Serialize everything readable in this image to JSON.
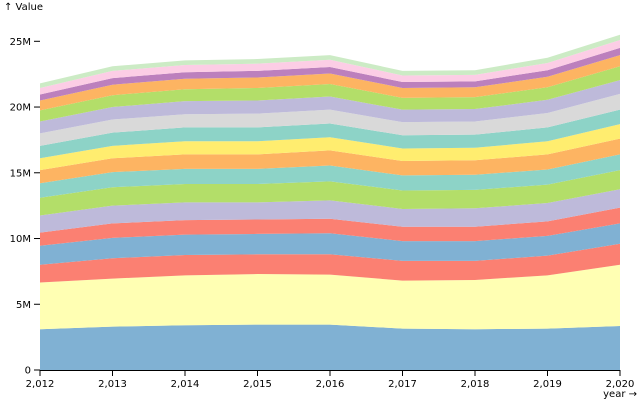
{
  "chart_data": {
    "type": "area",
    "stacked": true,
    "ylabel": "↑ Value",
    "xlabel": "year →",
    "x": [
      2012,
      2013,
      2014,
      2015,
      2016,
      2017,
      2018,
      2019,
      2020
    ],
    "x_tick_labels": [
      "2,012",
      "2,013",
      "2,014",
      "2,015",
      "2,016",
      "2,017",
      "2,018",
      "2,019",
      "2,020"
    ],
    "y_ticks": [
      0,
      5000000,
      10000000,
      15000000,
      20000000,
      25000000
    ],
    "y_tick_labels": [
      "0",
      "5M",
      "10M",
      "15M",
      "20M",
      "25M"
    ],
    "ylim": [
      0,
      27000000
    ],
    "grid": false,
    "series": [
      {
        "color": "#80b1d3",
        "values": [
          3100000,
          3300000,
          3400000,
          3450000,
          3450000,
          3150000,
          3100000,
          3150000,
          3350000
        ]
      },
      {
        "color": "#ffffb3",
        "values": [
          3550000,
          3650000,
          3800000,
          3850000,
          3800000,
          3650000,
          3750000,
          4050000,
          4650000
        ]
      },
      {
        "color": "#fb8072",
        "values": [
          1350000,
          1550000,
          1550000,
          1500000,
          1550000,
          1500000,
          1450000,
          1500000,
          1600000
        ]
      },
      {
        "color": "#80b1d3",
        "values": [
          1450000,
          1550000,
          1550000,
          1550000,
          1600000,
          1500000,
          1500000,
          1500000,
          1550000
        ]
      },
      {
        "color": "#fb8072",
        "values": [
          1000000,
          1100000,
          1100000,
          1100000,
          1100000,
          1100000,
          1100000,
          1100000,
          1200000
        ]
      },
      {
        "color": "#bebada",
        "values": [
          1300000,
          1350000,
          1350000,
          1300000,
          1400000,
          1350000,
          1400000,
          1400000,
          1400000
        ]
      },
      {
        "color": "#b3de69",
        "values": [
          1350000,
          1400000,
          1400000,
          1400000,
          1450000,
          1400000,
          1400000,
          1400000,
          1450000
        ]
      },
      {
        "color": "#8dd3c7",
        "values": [
          1100000,
          1150000,
          1150000,
          1150000,
          1200000,
          1150000,
          1150000,
          1150000,
          1200000
        ]
      },
      {
        "color": "#fdb462",
        "values": [
          1000000,
          1050000,
          1100000,
          1100000,
          1150000,
          1100000,
          1100000,
          1150000,
          1200000
        ]
      },
      {
        "color": "#ffed6f",
        "values": [
          900000,
          950000,
          1000000,
          1000000,
          1000000,
          950000,
          950000,
          1000000,
          1100000
        ]
      },
      {
        "color": "#8dd3c7",
        "values": [
          950000,
          1000000,
          1050000,
          1050000,
          1050000,
          1000000,
          1000000,
          1050000,
          1100000
        ]
      },
      {
        "color": "#d9d9d9",
        "values": [
          950000,
          1000000,
          1000000,
          1050000,
          1050000,
          1000000,
          1000000,
          1100000,
          1200000
        ]
      },
      {
        "color": "#bebada",
        "values": [
          900000,
          950000,
          1000000,
          1000000,
          1000000,
          950000,
          950000,
          1000000,
          1050000
        ]
      },
      {
        "color": "#b3de69",
        "values": [
          850000,
          900000,
          900000,
          950000,
          950000,
          900000,
          900000,
          950000,
          1050000
        ]
      },
      {
        "color": "#fdb462",
        "values": [
          750000,
          800000,
          800000,
          800000,
          800000,
          750000,
          750000,
          800000,
          850000
        ]
      },
      {
        "color": "#bc80bd",
        "values": [
          450000,
          500000,
          500000,
          500000,
          500000,
          450000,
          450000,
          500000,
          550000
        ]
      },
      {
        "color": "#fccde5",
        "values": [
          500000,
          550000,
          550000,
          550000,
          550000,
          500000,
          500000,
          550000,
          600000
        ]
      },
      {
        "color": "#ccebc5",
        "values": [
          350000,
          350000,
          350000,
          350000,
          350000,
          350000,
          350000,
          400000,
          400000
        ]
      }
    ]
  }
}
